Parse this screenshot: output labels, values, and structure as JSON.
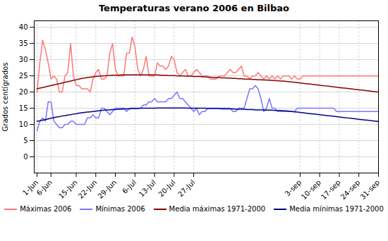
{
  "chart_data": {
    "type": "line",
    "title": "Temperaturas verano 2006 en Bilbao",
    "ylabel": "Grados centígrados",
    "x": [
      0,
      1,
      2,
      3,
      4,
      5,
      6,
      7,
      8,
      9,
      10,
      11,
      12,
      13,
      14,
      15,
      16,
      17,
      18,
      19,
      20,
      21,
      22,
      23,
      24,
      25,
      26,
      27,
      28,
      29,
      30,
      31,
      32,
      33,
      34,
      35,
      36,
      37,
      38,
      39,
      40,
      41,
      42,
      43,
      44,
      45,
      46,
      47,
      48,
      49,
      50,
      51,
      52,
      53,
      54,
      55,
      56,
      57,
      58,
      59,
      60,
      61,
      62,
      63,
      64,
      65,
      66,
      67,
      68,
      69,
      70,
      71,
      72,
      73,
      74,
      75,
      76,
      77,
      78,
      79,
      80,
      81,
      82,
      83,
      84,
      85,
      86,
      87,
      88,
      89,
      90,
      91,
      92,
      93,
      94,
      95,
      96,
      97,
      98,
      99,
      100,
      101,
      102,
      103,
      104,
      105,
      106,
      107,
      108,
      109,
      110,
      111,
      112,
      113,
      114,
      115,
      116,
      117,
      118,
      119,
      120,
      121,
      122
    ],
    "xlim": [
      -1,
      122
    ],
    "xticks": [
      {
        "value": 0,
        "label": "1-Jun"
      },
      {
        "value": 5,
        "label": "6-Jun"
      },
      {
        "value": 14,
        "label": "15-Jun"
      },
      {
        "value": 21,
        "label": "22-Jun"
      },
      {
        "value": 28,
        "label": "29-Jun"
      },
      {
        "value": 35,
        "label": "6-Jul"
      },
      {
        "value": 42,
        "label": "13-Jul"
      },
      {
        "value": 49,
        "label": "20-Jul"
      },
      {
        "value": 56,
        "label": "27-Jul"
      },
      {
        "value": 94,
        "label": "3-sep"
      },
      {
        "value": 101,
        "label": "10-sep"
      },
      {
        "value": 108,
        "label": "17-sep"
      },
      {
        "value": 115,
        "label": "24-sep"
      },
      {
        "value": 122,
        "label": "31-sep"
      }
    ],
    "ylim": [
      -5,
      42
    ],
    "yticks": [
      0,
      5,
      10,
      15,
      20,
      25,
      30,
      35,
      40
    ],
    "grid": true,
    "legend": "bottom",
    "series": [
      {
        "name": "Máximas 2006",
        "color": "#FF7777",
        "values": [
          20,
          29,
          36,
          33,
          29,
          24,
          25,
          24,
          20,
          20,
          25,
          26,
          35,
          25,
          22,
          22,
          21,
          21,
          21,
          20,
          24,
          26,
          27,
          24,
          24,
          25,
          32,
          35,
          27,
          25,
          25,
          25,
          32,
          32,
          37,
          34,
          27,
          25,
          27,
          31,
          25,
          25,
          25,
          29,
          28,
          28,
          27,
          28,
          31,
          30,
          26,
          25,
          26,
          27,
          25,
          25,
          26,
          27,
          26,
          25,
          25,
          25,
          24,
          24,
          24,
          25,
          25,
          25,
          26,
          27,
          26,
          26,
          27,
          28,
          25,
          25,
          24,
          25,
          25,
          26,
          25,
          24,
          25,
          24,
          25,
          24,
          25,
          24,
          25,
          25,
          25,
          24,
          25,
          24,
          24,
          25,
          25,
          25,
          25,
          25,
          25,
          25,
          25,
          25,
          25,
          25,
          25,
          25,
          25,
          25,
          25,
          25,
          25,
          25,
          25,
          25,
          25,
          25,
          25,
          25,
          25,
          25,
          25
        ]
      },
      {
        "name": "Mínimas 2006",
        "color": "#7777FF",
        "values": [
          8,
          11,
          12,
          11,
          17,
          17,
          11,
          10,
          9,
          9,
          10,
          10,
          11,
          11,
          10,
          10,
          10,
          10,
          12,
          12,
          13,
          12,
          12,
          15,
          15,
          14,
          13,
          14,
          15,
          15,
          15,
          15,
          14,
          15,
          15,
          15,
          15,
          15,
          16,
          16,
          17,
          17,
          18,
          17,
          17,
          17,
          17,
          18,
          18,
          19,
          20,
          18,
          18,
          17,
          16,
          15,
          14,
          15,
          13,
          14,
          14,
          15,
          15,
          15,
          15,
          15,
          15,
          15,
          15,
          15,
          14,
          14,
          15,
          15,
          15,
          18,
          21,
          21,
          22,
          21,
          18,
          14,
          15,
          18,
          15,
          15,
          14,
          14,
          14,
          14,
          14,
          14,
          14,
          15,
          15,
          15,
          15,
          15,
          15,
          15,
          15,
          15,
          15,
          15,
          15,
          15,
          15,
          14,
          14,
          14,
          14,
          14,
          14,
          14,
          14,
          14,
          14,
          14,
          14,
          14,
          14,
          14,
          14
        ]
      },
      {
        "name": "Media máximas 1971-2000",
        "color": "#8B0000",
        "values": [
          21.0,
          21.2,
          21.4,
          21.6,
          21.8,
          22.0,
          22.2,
          22.4,
          22.6,
          22.8,
          23.0,
          23.2,
          23.4,
          23.6,
          23.8,
          24.0,
          24.2,
          24.3,
          24.5,
          24.6,
          24.7,
          24.8,
          24.9,
          25.0,
          25.0,
          25.1,
          25.1,
          25.2,
          25.2,
          25.2,
          25.3,
          25.3,
          25.3,
          25.3,
          25.3,
          25.3,
          25.3,
          25.3,
          25.3,
          25.3,
          25.3,
          25.3,
          25.3,
          25.3,
          25.2,
          25.2,
          25.2,
          25.1,
          25.1,
          25.1,
          25.0,
          25.0,
          25.0,
          24.9,
          24.9,
          24.9,
          24.8,
          24.8,
          24.8,
          24.7,
          24.7,
          24.6,
          24.6,
          24.5,
          24.5,
          24.5,
          24.4,
          24.4,
          24.3,
          24.3,
          24.2,
          24.2,
          24.1,
          24.1,
          24.0,
          24.0,
          24.0,
          23.9,
          23.9,
          23.8,
          23.8,
          23.7,
          23.7,
          23.6,
          23.6,
          23.5,
          23.5,
          23.4,
          23.4,
          23.3,
          23.2,
          23.1,
          23.0,
          22.9,
          22.8,
          22.7,
          22.6,
          22.5,
          22.4,
          22.3,
          22.2,
          22.1,
          22.0,
          21.9,
          21.8,
          21.7,
          21.6,
          21.5,
          21.4,
          21.3,
          21.2,
          21.1,
          21.0,
          20.9,
          20.8,
          20.7,
          20.6,
          20.5,
          20.4,
          20.3,
          20.2,
          20.1,
          20.0
        ]
      },
      {
        "name": "Media mínimas 1971-2000",
        "color": "#00008B",
        "values": [
          11.0,
          11.1,
          11.3,
          11.5,
          11.7,
          11.9,
          12.1,
          12.3,
          12.4,
          12.6,
          12.7,
          12.9,
          13.0,
          13.2,
          13.3,
          13.5,
          13.6,
          13.7,
          13.8,
          13.9,
          14.0,
          14.1,
          14.2,
          14.3,
          14.4,
          14.5,
          14.5,
          14.6,
          14.6,
          14.7,
          14.7,
          14.8,
          14.8,
          14.8,
          14.9,
          14.9,
          14.9,
          15.0,
          15.0,
          15.0,
          15.0,
          15.0,
          15.0,
          15.1,
          15.1,
          15.1,
          15.1,
          15.1,
          15.1,
          15.1,
          15.1,
          15.1,
          15.1,
          15.1,
          15.0,
          15.0,
          15.0,
          15.0,
          15.0,
          15.0,
          15.0,
          14.9,
          14.9,
          14.9,
          14.9,
          14.9,
          14.8,
          14.8,
          14.8,
          14.8,
          14.8,
          14.7,
          14.7,
          14.7,
          14.7,
          14.6,
          14.6,
          14.6,
          14.5,
          14.5,
          14.5,
          14.5,
          14.4,
          14.4,
          14.4,
          14.3,
          14.3,
          14.3,
          14.2,
          14.2,
          14.1,
          14.0,
          13.9,
          13.8,
          13.7,
          13.6,
          13.5,
          13.4,
          13.3,
          13.2,
          13.1,
          13.0,
          12.9,
          12.8,
          12.7,
          12.6,
          12.5,
          12.4,
          12.3,
          12.2,
          12.1,
          12.0,
          11.9,
          11.8,
          11.7,
          11.6,
          11.5,
          11.4,
          11.3,
          11.2,
          11.1,
          11.0,
          10.9
        ]
      }
    ]
  }
}
